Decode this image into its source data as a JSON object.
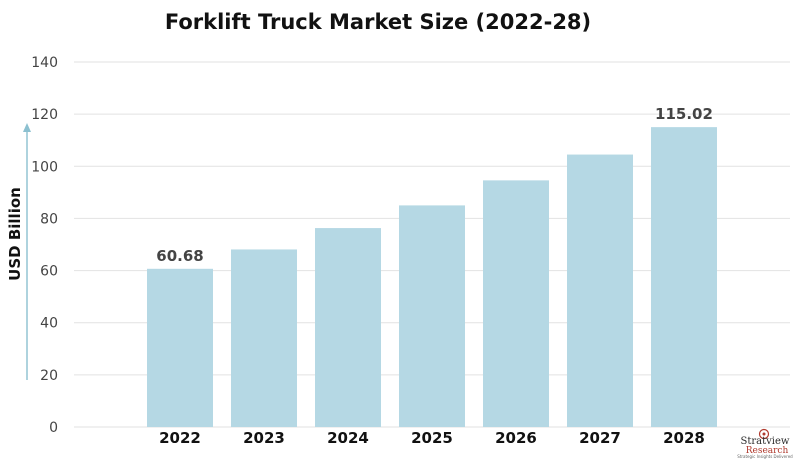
{
  "chart_data": {
    "type": "bar",
    "title": "Forklift Truck Market Size (2022-28)",
    "ylabel": "USD Billion",
    "xlabel": "",
    "categories": [
      "2022",
      "2023",
      "2024",
      "2025",
      "2026",
      "2027",
      "2028"
    ],
    "values": [
      60.68,
      68.1,
      76.3,
      85.0,
      94.6,
      104.5,
      115.02
    ],
    "data_labels": {
      "0": "60.68",
      "6": "115.02"
    },
    "ylim": [
      0,
      140
    ],
    "yticks": [
      0,
      20,
      40,
      60,
      80,
      100,
      120,
      140
    ],
    "grid": true,
    "bar_color": "#b5d8e4",
    "grid_color": "#e2e2e2",
    "arrow_color": "#8cc0d0"
  },
  "logo": {
    "name": "Stratview",
    "sub": "Research",
    "tagline": "Strategic Insights Delivered",
    "icon": "target-icon"
  }
}
